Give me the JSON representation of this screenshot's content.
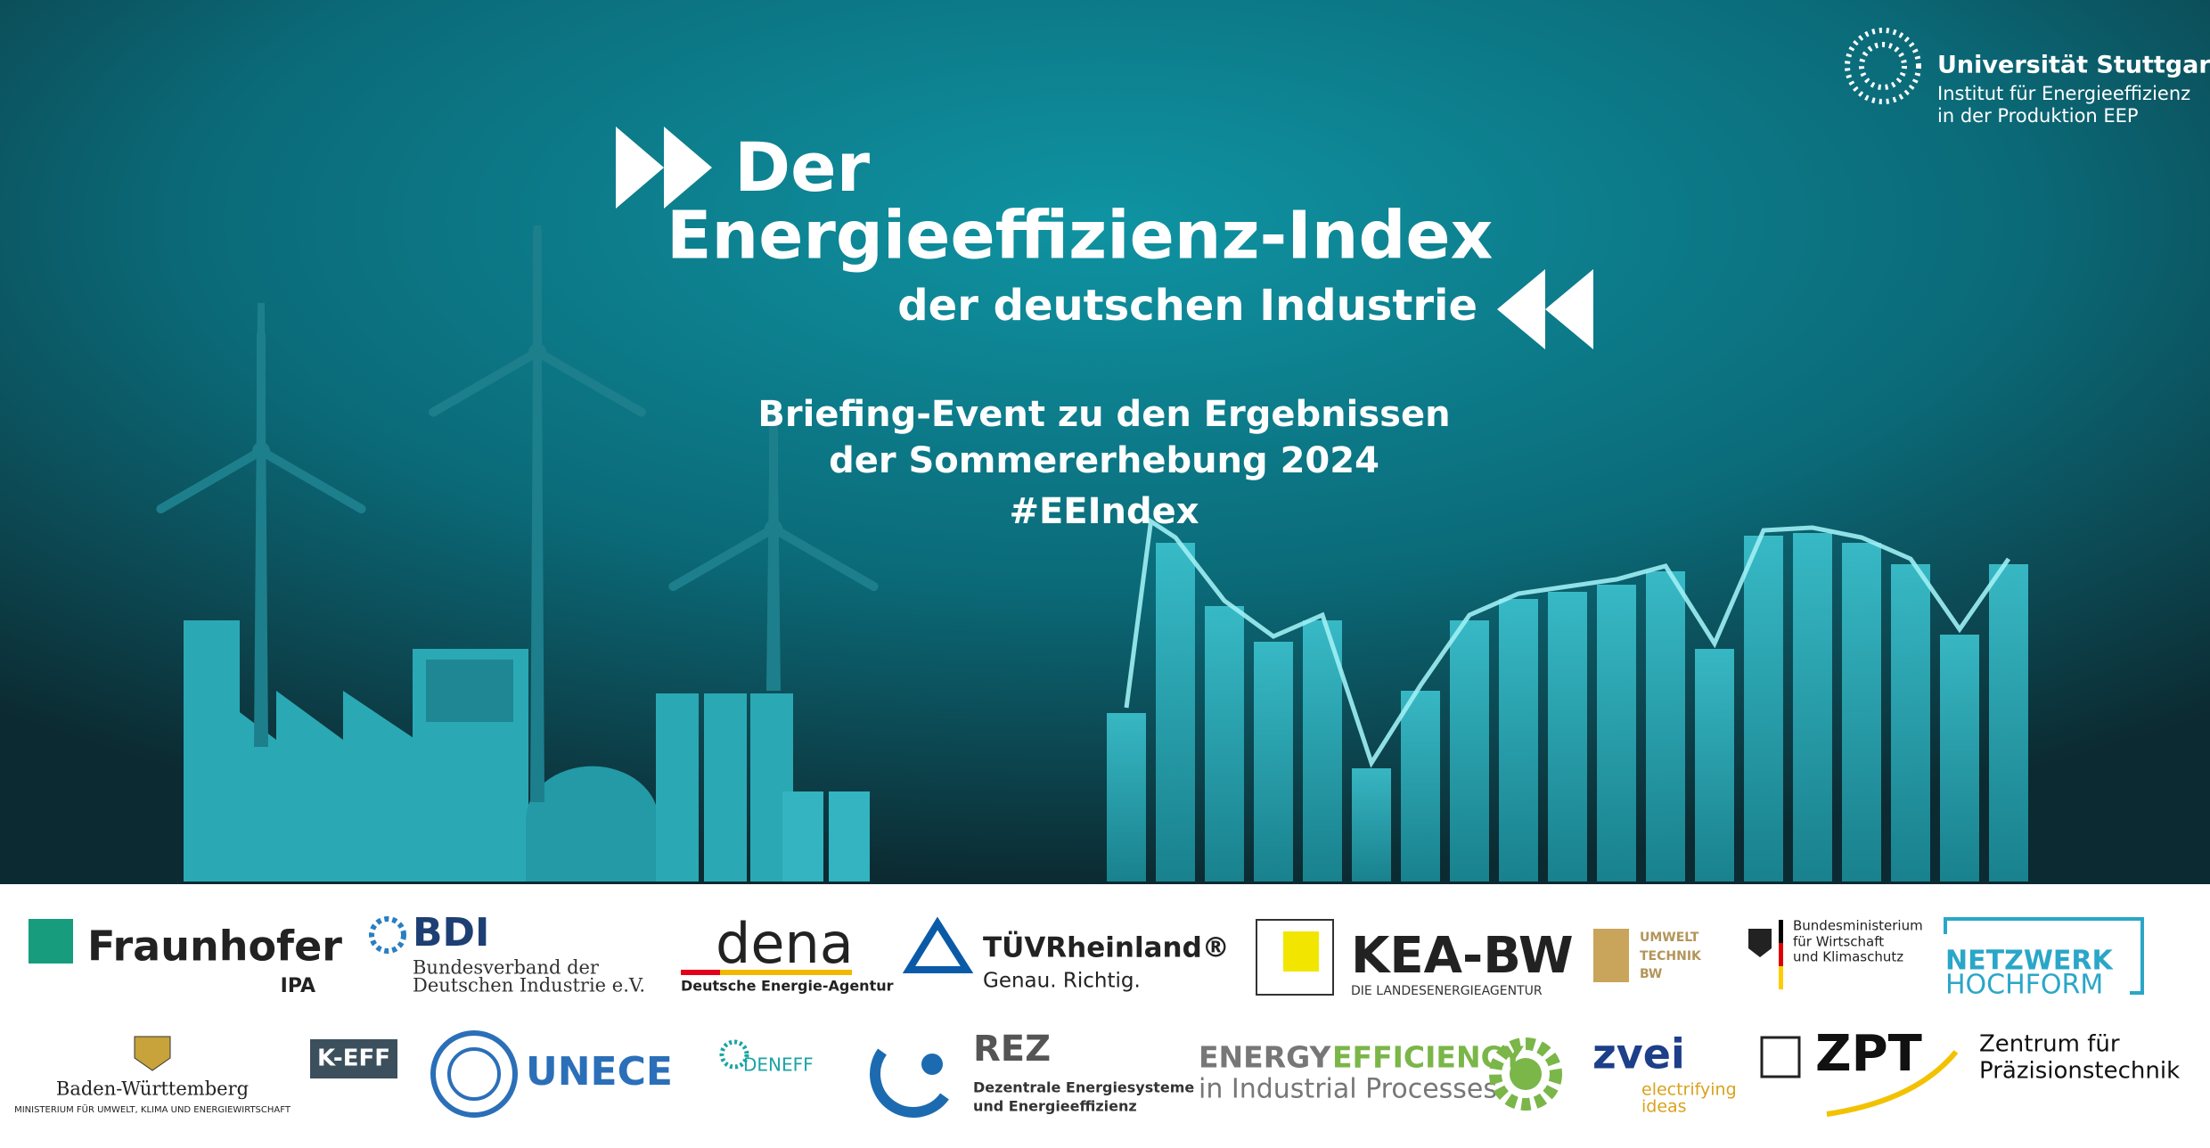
{
  "header": {
    "university": "Universität Stuttgart",
    "institute_line1": "Institut für Energieeffizienz",
    "institute_line2": "in der Produktion EEP"
  },
  "title": {
    "line1": "Der",
    "line2": "Energieeffizienz-Index",
    "line3": "der deutschen Industrie"
  },
  "event": {
    "line1": "Briefing-Event zu den Ergebnissen",
    "line2": "der Sommererhebung 2024",
    "hashtag": "#EEIndex"
  },
  "partners": {
    "fraunhofer": {
      "name": "Fraunhofer",
      "unit": "IPA"
    },
    "bdi": {
      "name": "BDI",
      "line1": "Bundesverband der",
      "line2": "Deutschen Industrie e.V."
    },
    "dena": {
      "name": "dena",
      "subtitle": "Deutsche Energie-Agentur"
    },
    "tuev": {
      "name": "TÜVRheinland®",
      "slogan": "Genau. Richtig."
    },
    "kea": {
      "name": "KEA-BW",
      "subtitle": "DIE LANDESENERGIEAGENTUR"
    },
    "umwelttechnik": {
      "line1": "UMWELT",
      "line2": "TECHNIK",
      "line3": "BW"
    },
    "bmwk": {
      "line1": "Bundesministerium",
      "line2": "für Wirtschaft",
      "line3": "und Klimaschutz"
    },
    "hochform": {
      "line1": "NETZWERK",
      "line2": "HOCHFORM"
    },
    "bw": {
      "name": "Baden-Württemberg",
      "subtitle": "MINISTERIUM FÜR UMWELT, KLIMA UND ENERGIEWIRTSCHAFT"
    },
    "keff": {
      "name": "K-EFF"
    },
    "unece": {
      "name": "UNECE"
    },
    "deneff": {
      "name": "DENEFF"
    },
    "rez": {
      "name": "REZ",
      "line1": "Dezentrale Energiesysteme",
      "line2": "und Energieeffizienz"
    },
    "eeip": {
      "word1": "ENERGY",
      "word2": "EFFICIENCY",
      "line2": "in Industrial Processes"
    },
    "zvei": {
      "name": "zvei",
      "line1": "electrifying",
      "line2": "ideas"
    },
    "zpt": {
      "name": "ZPT",
      "line1": "Zentrum für",
      "line2": "Präzisionstechnik"
    }
  }
}
